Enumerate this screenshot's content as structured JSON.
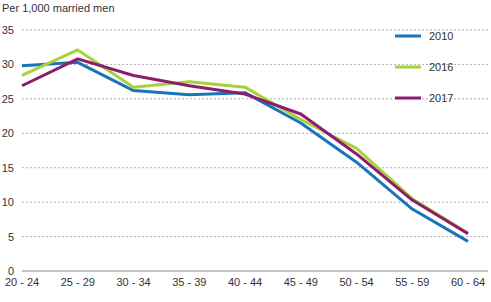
{
  "chart_data": {
    "type": "line",
    "y_label": "Per 1,000 married men",
    "categories": [
      "20 - 24",
      "25 - 29",
      "30 - 34",
      "35 - 39",
      "40 - 44",
      "45 - 49",
      "50 - 54",
      "55 - 59",
      "60 - 64"
    ],
    "series": [
      {
        "name": "2010",
        "color": "#1a75b8",
        "values": [
          29.8,
          30.3,
          26.2,
          25.6,
          25.9,
          21.5,
          15.8,
          9.0,
          4.3
        ]
      },
      {
        "name": "2016",
        "color": "#a8d13a",
        "values": [
          28.4,
          32.1,
          26.7,
          27.5,
          26.7,
          22.0,
          17.8,
          10.5,
          5.5
        ]
      },
      {
        "name": "2017",
        "color": "#8c1d6e",
        "values": [
          26.9,
          30.8,
          28.4,
          26.9,
          25.7,
          22.8,
          17.0,
          10.3,
          5.4
        ]
      }
    ],
    "ylim": [
      0,
      35
    ],
    "yticks": [
      0,
      5,
      10,
      15,
      20,
      25,
      30,
      35
    ],
    "grid": true,
    "legend": "upper right"
  }
}
